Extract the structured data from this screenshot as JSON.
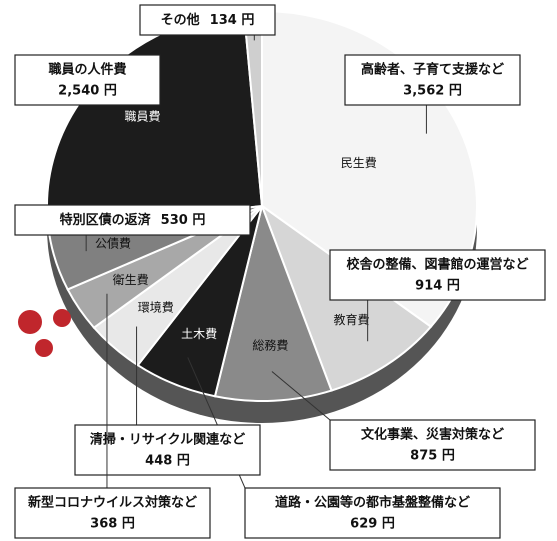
{
  "chart_data": {
    "type": "pie",
    "categories": [
      "民生費",
      "教育費",
      "総務費",
      "土木費",
      "環境費",
      "衛生費",
      "公債費",
      "職員費",
      null
    ],
    "values": [
      3562,
      914,
      875,
      629,
      448,
      368,
      530,
      2540,
      134
    ],
    "value_labels": [
      "3,562 円",
      "914 円",
      "875 円",
      "629 円",
      "448 円",
      "368 円",
      "530 円",
      "2,540 円",
      "134 円"
    ],
    "descriptions": [
      "高齢者、子育て支援など",
      "校舎の整備、図書館の運営など",
      "文化事業、災害対策など",
      "道路・公園等の都市基盤整備など",
      "清掃・リサイクル関連など",
      "新型コロナウイルス対策など",
      "特別区債の返済",
      "職員の人件費",
      "その他"
    ],
    "colors": [
      "#f4f4f4",
      "#d6d6d6",
      "#8a8a8a",
      "#1c1c1c",
      "#e8e8e8",
      "#a8a8a8",
      "#808080",
      "#1c1c1c",
      "#cfcfcf"
    ]
  }
}
